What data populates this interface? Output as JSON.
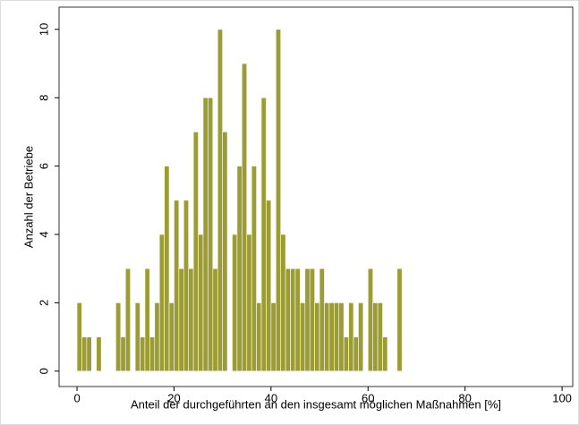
{
  "chart_data": {
    "type": "histogram",
    "xlabel": "Anteil der durchgeführten an den insgesamt möglichen Maßnahmen [%]",
    "ylabel": "Anzahl der Betriebe",
    "bins": [
      0,
      1,
      2,
      3,
      4,
      5,
      6,
      7,
      8,
      9,
      10,
      11,
      12,
      13,
      14,
      15,
      16,
      17,
      18,
      19,
      20,
      21,
      22,
      23,
      24,
      25,
      26,
      27,
      28,
      29,
      30,
      31,
      32,
      33,
      34,
      35,
      36,
      37,
      38,
      39,
      40,
      41,
      42,
      43,
      44,
      45,
      46,
      47,
      48,
      49,
      50,
      51,
      52,
      53,
      54,
      55,
      56,
      57,
      58,
      59,
      60,
      61,
      62,
      63,
      64,
      65,
      66,
      67
    ],
    "counts": [
      2,
      1,
      1,
      0,
      1,
      0,
      0,
      0,
      2,
      1,
      3,
      0,
      2,
      1,
      3,
      1,
      2,
      4,
      6,
      2,
      5,
      3,
      5,
      3,
      7,
      4,
      8,
      8,
      3,
      10,
      7,
      0,
      4,
      6,
      9,
      4,
      6,
      2,
      8,
      5,
      2,
      10,
      4,
      3,
      3,
      3,
      2,
      3,
      3,
      2,
      3,
      2,
      2,
      2,
      2,
      1,
      2,
      1,
      2,
      0,
      3,
      2,
      2,
      1,
      0,
      0,
      3
    ],
    "color": "#9c9c34",
    "xlim": [
      -3.7,
      102.2
    ],
    "xticks": [
      0,
      20,
      40,
      60,
      80,
      100
    ],
    "ylim": [
      -0.45,
      10.65
    ],
    "yticks": [
      0,
      2,
      4,
      6,
      8,
      10
    ]
  }
}
